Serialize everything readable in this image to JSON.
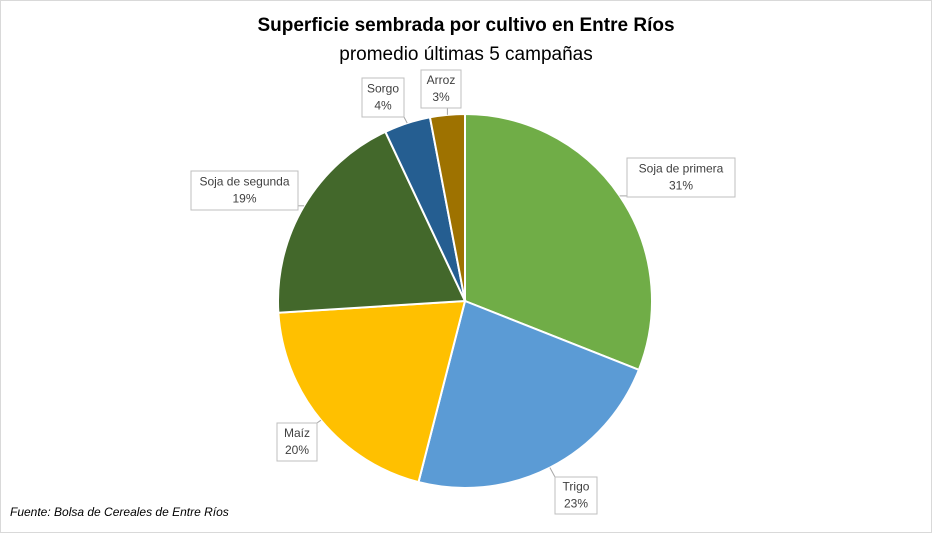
{
  "chart_data": {
    "type": "pie",
    "title": "Superficie sembrada por cultivo en Entre Ríos",
    "subtitle": "promedio últimas 5 campañas",
    "categories": [
      "Soja de primera",
      "Trigo",
      "Maíz",
      "Soja de segunda",
      "Sorgo",
      "Arroz"
    ],
    "values": [
      31,
      23,
      20,
      19,
      4,
      3
    ],
    "value_labels": [
      "31%",
      "23%",
      "20%",
      "19%",
      "4%",
      "3%"
    ],
    "colors": [
      "#70ad47",
      "#5b9bd5",
      "#ffc000",
      "#43682b",
      "#255e91",
      "#9e7200"
    ],
    "source": "Fuente: Bolsa de Cereales de Entre Ríos"
  }
}
